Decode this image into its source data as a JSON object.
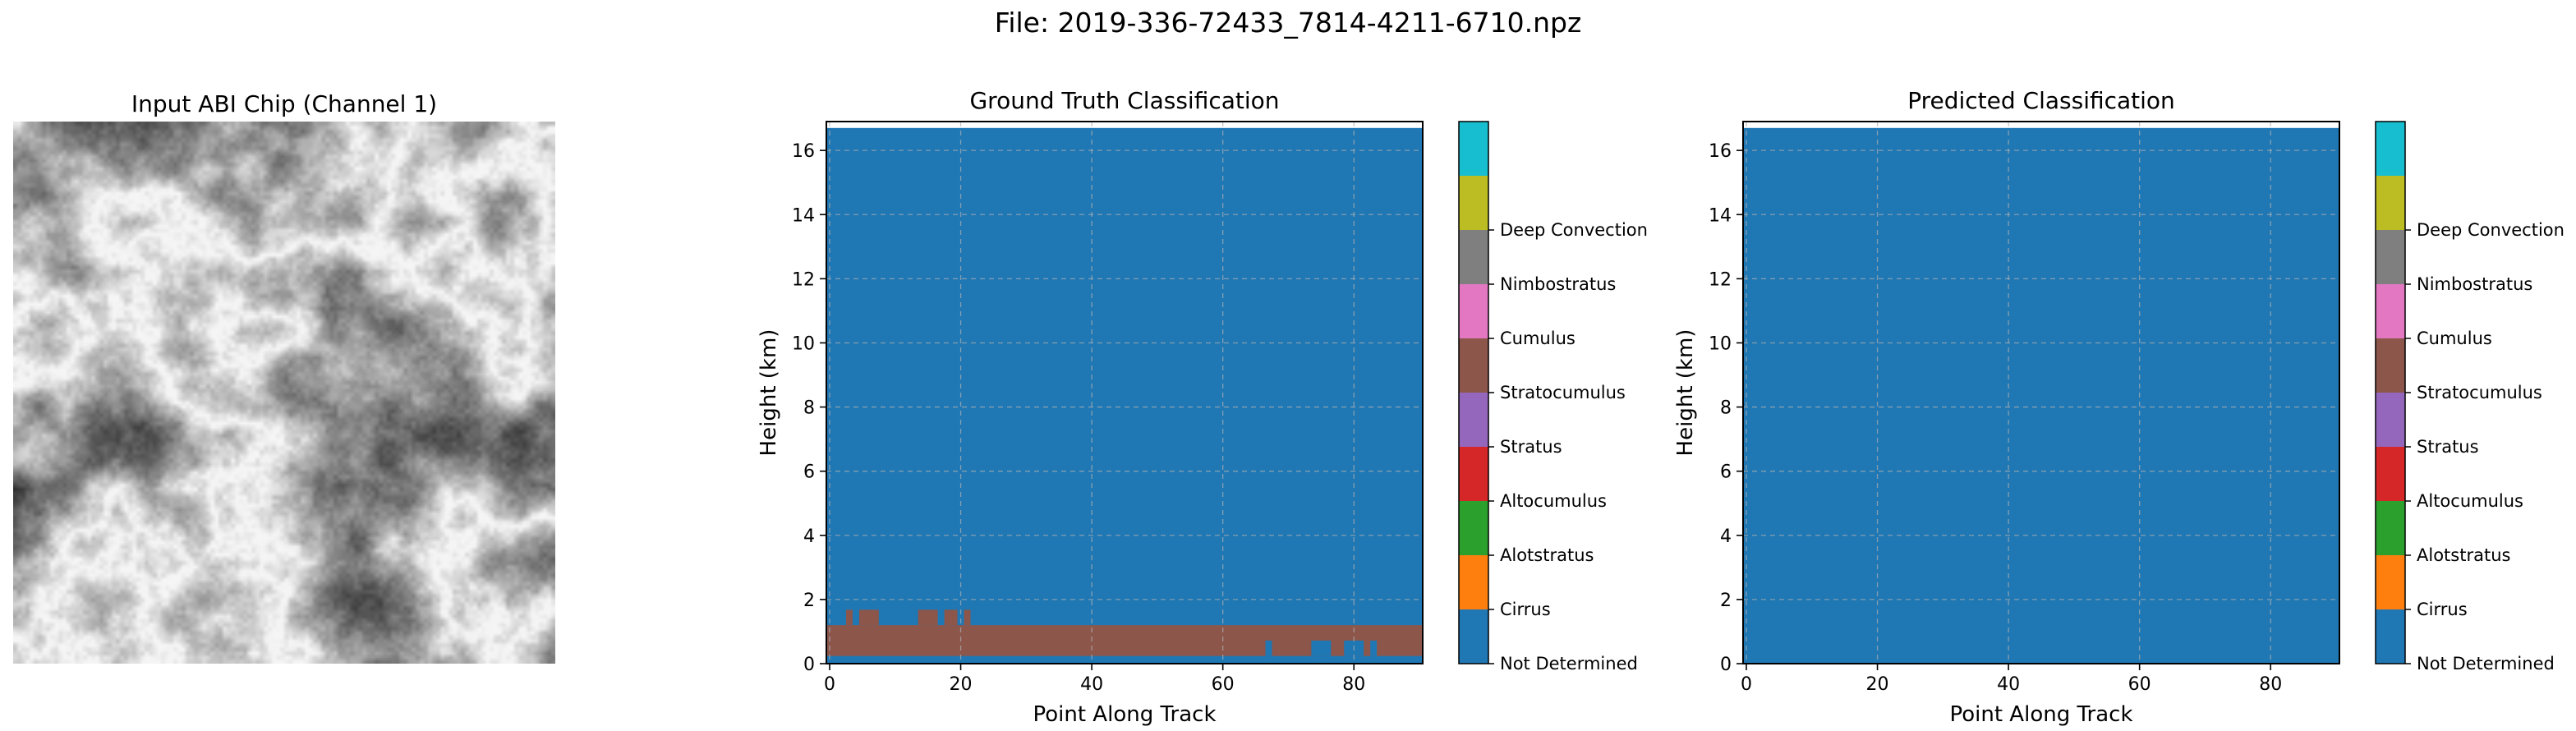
{
  "figure_title": "File: 2019-336-72433_7814-4211-6710.npz",
  "chip": {
    "title": "Input ABI Chip (Channel 1)"
  },
  "classes": [
    {
      "name": "Not Determined",
      "color": "#1f77b4"
    },
    {
      "name": "Cirrus",
      "color": "#ff7f0e"
    },
    {
      "name": "Alotstratus",
      "color": "#2ca02c"
    },
    {
      "name": "Altocumulus",
      "color": "#d62728"
    },
    {
      "name": "Stratus",
      "color": "#9467bd"
    },
    {
      "name": "Stratocumulus",
      "color": "#8c564b"
    },
    {
      "name": "Cumulus",
      "color": "#e377c2"
    },
    {
      "name": "Nimbostratus",
      "color": "#7f7f7f"
    },
    {
      "name": "Deep Convection",
      "color": "#bcbd22"
    },
    {
      "name": "",
      "color": "#17becf"
    }
  ],
  "chart_data": [
    {
      "type": "heatmap",
      "title": "Ground Truth Classification",
      "xlabel": "Point Along Track",
      "ylabel": "Height (km)",
      "xlim": [
        -0.5,
        90.5
      ],
      "ylim": [
        0,
        16.9
      ],
      "xticks": [
        0,
        20,
        40,
        60,
        80
      ],
      "yticks": [
        0,
        2,
        4,
        6,
        8,
        10,
        12,
        14,
        16
      ],
      "grid": true,
      "background_class": "Not Determined",
      "top_of_field_km": 16.7,
      "regions": [
        {
          "class": "Stratocumulus",
          "x": [
            -0.5,
            90.5
          ],
          "y": [
            0.24,
            1.2
          ]
        },
        {
          "class": "Stratocumulus",
          "x": [
            2.5,
            3.5
          ],
          "y": [
            1.2,
            1.68
          ]
        },
        {
          "class": "Stratocumulus",
          "x": [
            4.5,
            7.5
          ],
          "y": [
            1.2,
            1.68
          ]
        },
        {
          "class": "Stratocumulus",
          "x": [
            13.5,
            16.5
          ],
          "y": [
            1.2,
            1.68
          ]
        },
        {
          "class": "Stratocumulus",
          "x": [
            17.5,
            19.5
          ],
          "y": [
            1.2,
            1.68
          ]
        },
        {
          "class": "Stratocumulus",
          "x": [
            20.5,
            21.5
          ],
          "y": [
            1.2,
            1.68
          ]
        },
        {
          "class": "Not Determined",
          "x": [
            66.5,
            67.5
          ],
          "y": [
            0.24,
            0.72
          ]
        },
        {
          "class": "Not Determined",
          "x": [
            73.5,
            76.5
          ],
          "y": [
            0.24,
            0.72
          ]
        },
        {
          "class": "Not Determined",
          "x": [
            78.5,
            81.5
          ],
          "y": [
            0.24,
            0.72
          ]
        },
        {
          "class": "Not Determined",
          "x": [
            82.5,
            83.5
          ],
          "y": [
            0.24,
            0.72
          ]
        }
      ]
    },
    {
      "type": "heatmap",
      "title": "Predicted Classification",
      "xlabel": "Point Along Track",
      "ylabel": "Height (km)",
      "xlim": [
        -0.5,
        90.5
      ],
      "ylim": [
        0,
        16.9
      ],
      "xticks": [
        0,
        20,
        40,
        60,
        80
      ],
      "yticks": [
        0,
        2,
        4,
        6,
        8,
        10,
        12,
        14,
        16
      ],
      "grid": true,
      "background_class": "Not Determined",
      "top_of_field_km": 16.7,
      "regions": []
    }
  ]
}
